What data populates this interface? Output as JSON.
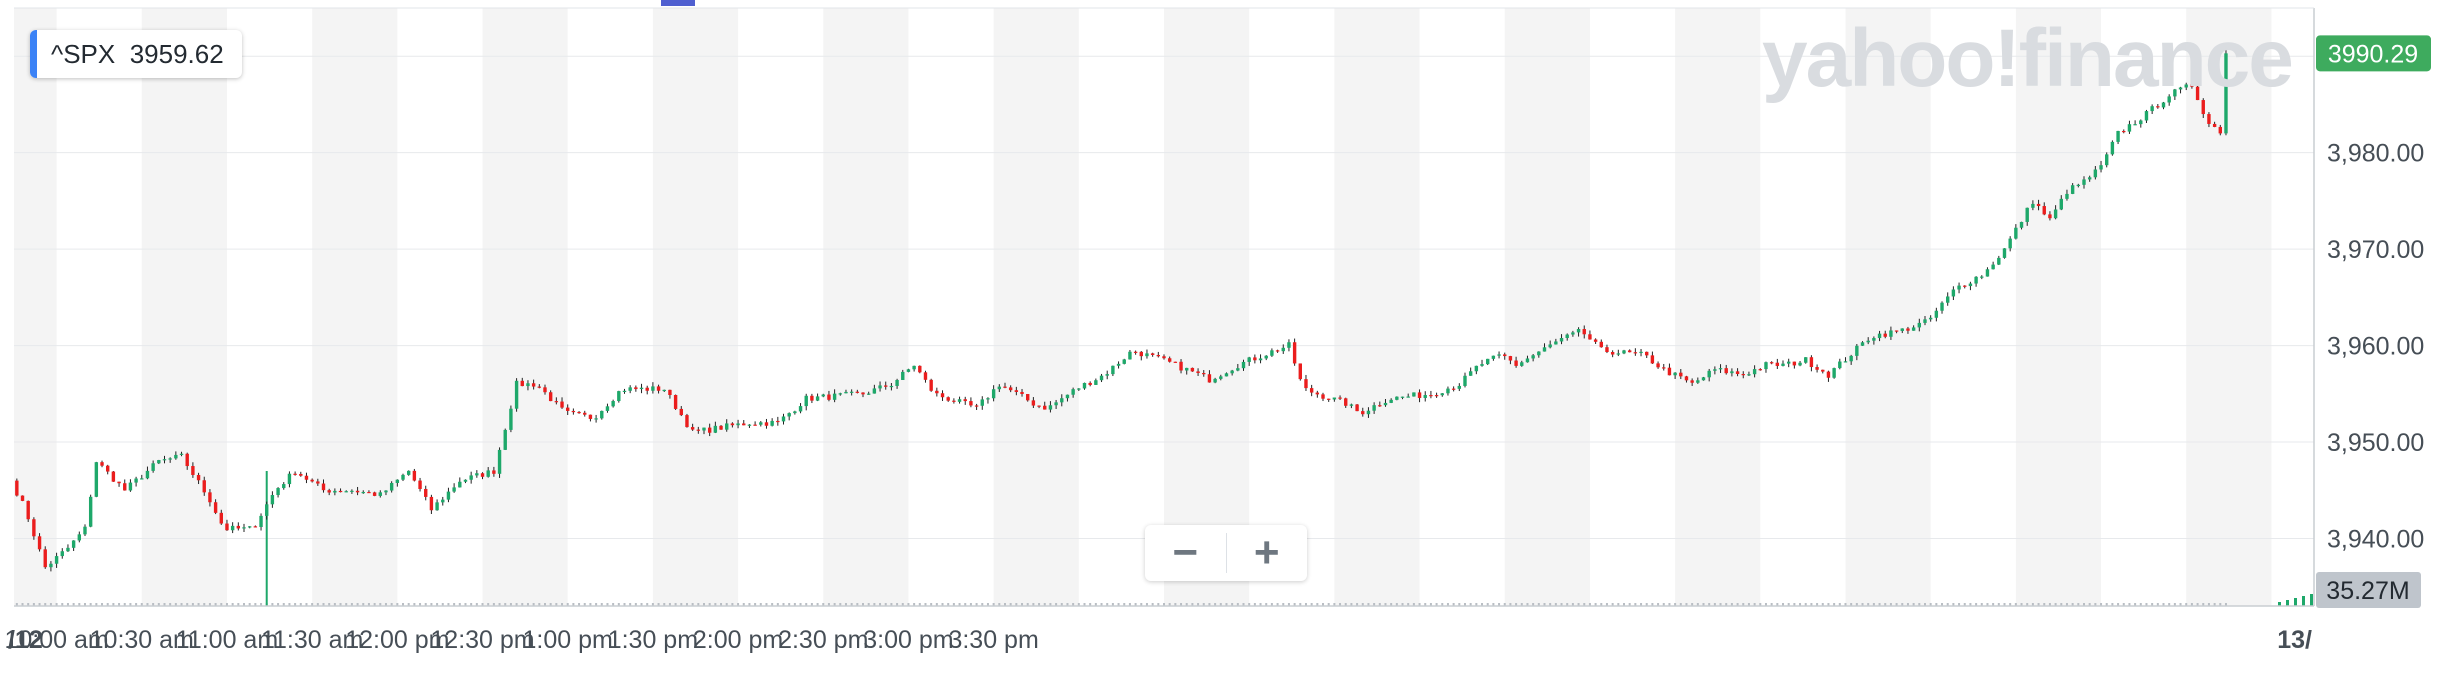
{
  "chart_data": {
    "type": "candlestick",
    "symbol": "^SPX",
    "legend_value": "3959.62",
    "last_price_label": "3990.29",
    "volume_label": "35.27M",
    "ylim": [
      3933,
      3995
    ],
    "y_ticks": [
      "3,940.00",
      "3,950.00",
      "3,960.00",
      "3,970.00",
      "3,980.00"
    ],
    "x_ticks": [
      "/12",
      "10:00 am",
      "10:30 am",
      "11:00 am",
      "11:30 am",
      "12:00 pm",
      "12:30 pm",
      "1:00 pm",
      "1:30 pm",
      "2:00 pm",
      "2:30 pm",
      "3:00 pm",
      "3:30 pm",
      "13/"
    ],
    "path": [
      [
        0,
        3946
      ],
      [
        5,
        3943
      ],
      [
        12,
        3937
      ],
      [
        20,
        3939
      ],
      [
        26,
        3941
      ],
      [
        30,
        3948
      ],
      [
        40,
        3945
      ],
      [
        52,
        3948
      ],
      [
        60,
        3948.5
      ],
      [
        70,
        3944
      ],
      [
        75,
        3941
      ],
      [
        85,
        3941
      ],
      [
        93,
        3945
      ],
      [
        100,
        3947
      ],
      [
        110,
        3945
      ],
      [
        120,
        3945
      ],
      [
        130,
        3944.5
      ],
      [
        140,
        3947
      ],
      [
        148,
        3943
      ],
      [
        158,
        3946
      ],
      [
        170,
        3947
      ],
      [
        178,
        3956
      ],
      [
        185,
        3956
      ],
      [
        195,
        3953
      ],
      [
        205,
        3952.5
      ],
      [
        215,
        3955.5
      ],
      [
        230,
        3955.5
      ],
      [
        240,
        3951
      ],
      [
        260,
        3952
      ],
      [
        270,
        3952
      ],
      [
        280,
        3954.5
      ],
      [
        300,
        3955
      ],
      [
        310,
        3956
      ],
      [
        318,
        3958
      ],
      [
        325,
        3955
      ],
      [
        340,
        3953.5
      ],
      [
        348,
        3956
      ],
      [
        360,
        3954
      ],
      [
        365,
        3953.5
      ],
      [
        375,
        3955.5
      ],
      [
        385,
        3957
      ],
      [
        395,
        3959.5
      ],
      [
        410,
        3958
      ],
      [
        422,
        3956.5
      ],
      [
        432,
        3958
      ],
      [
        445,
        3959.5
      ],
      [
        450,
        3960
      ],
      [
        455,
        3955.5
      ],
      [
        470,
        3954
      ],
      [
        475,
        3953
      ],
      [
        485,
        3954.5
      ],
      [
        500,
        3955
      ],
      [
        510,
        3956
      ],
      [
        517,
        3958
      ],
      [
        525,
        3959
      ],
      [
        530,
        3958
      ],
      [
        545,
        3960.5
      ],
      [
        553,
        3961.5
      ],
      [
        560,
        3959.5
      ],
      [
        575,
        3959
      ],
      [
        582,
        3957.5
      ],
      [
        592,
        3956
      ],
      [
        600,
        3957.5
      ],
      [
        610,
        3957
      ],
      [
        618,
        3958
      ],
      [
        625,
        3958
      ],
      [
        632,
        3958.5
      ],
      [
        640,
        3957
      ],
      [
        655,
        3961
      ],
      [
        665,
        3961.5
      ],
      [
        675,
        3962.5
      ],
      [
        685,
        3966
      ],
      [
        695,
        3967.5
      ],
      [
        702,
        3970
      ],
      [
        712,
        3975
      ],
      [
        718,
        3973
      ],
      [
        724,
        3976
      ],
      [
        730,
        3977
      ],
      [
        736,
        3978.5
      ],
      [
        742,
        3982
      ],
      [
        752,
        3984
      ],
      [
        760,
        3986
      ],
      [
        768,
        3987
      ],
      [
        774,
        3983
      ],
      [
        782,
        3981.5
      ],
      [
        788,
        3981.5
      ],
      [
        792,
        3981
      ],
      [
        795,
        3983
      ],
      [
        800,
        3989
      ],
      [
        805,
        3990.3
      ]
    ],
    "open_price": 3946,
    "close_price": 3990.3,
    "volume_spike_minute": 89,
    "colors": {
      "up": "#1ea86a",
      "down": "#eb1d1d",
      "price_tag": "#3eab5e",
      "volume_tag": "#bfc5cc"
    }
  },
  "watermark_text": "yahoo!finance",
  "zoom": {
    "minus": "−",
    "plus": "+"
  }
}
